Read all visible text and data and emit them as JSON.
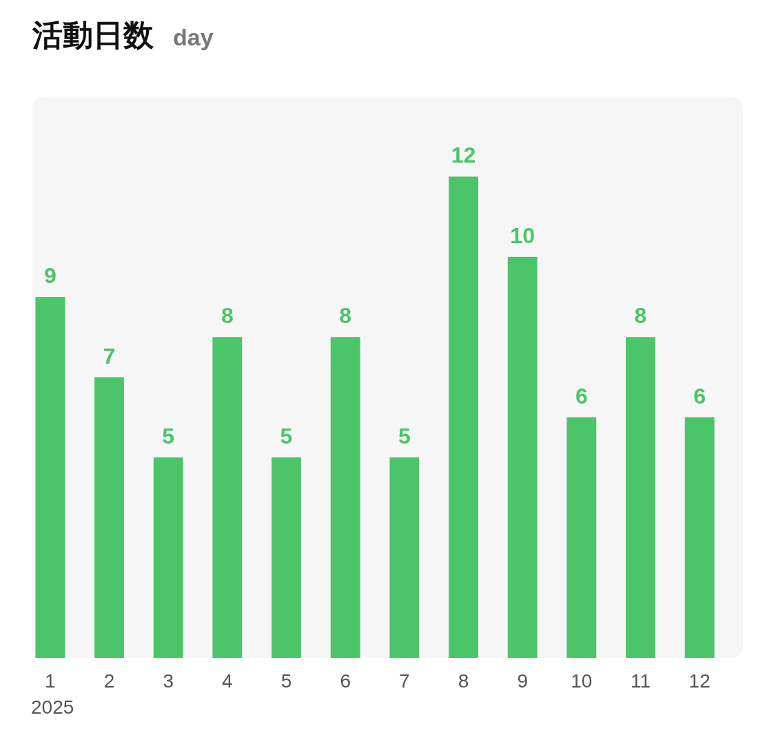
{
  "chart_data": {
    "type": "bar",
    "title": "活動日数",
    "subtitle": "day",
    "categories": [
      "1",
      "2",
      "3",
      "4",
      "5",
      "6",
      "7",
      "8",
      "9",
      "10",
      "11",
      "12"
    ],
    "values": [
      9,
      7,
      5,
      8,
      5,
      8,
      5,
      12,
      10,
      6,
      8,
      6
    ],
    "color": "#4cc46a",
    "data_labels": true,
    "ylim": [
      0,
      14
    ],
    "annotations": [
      "2025"
    ]
  }
}
